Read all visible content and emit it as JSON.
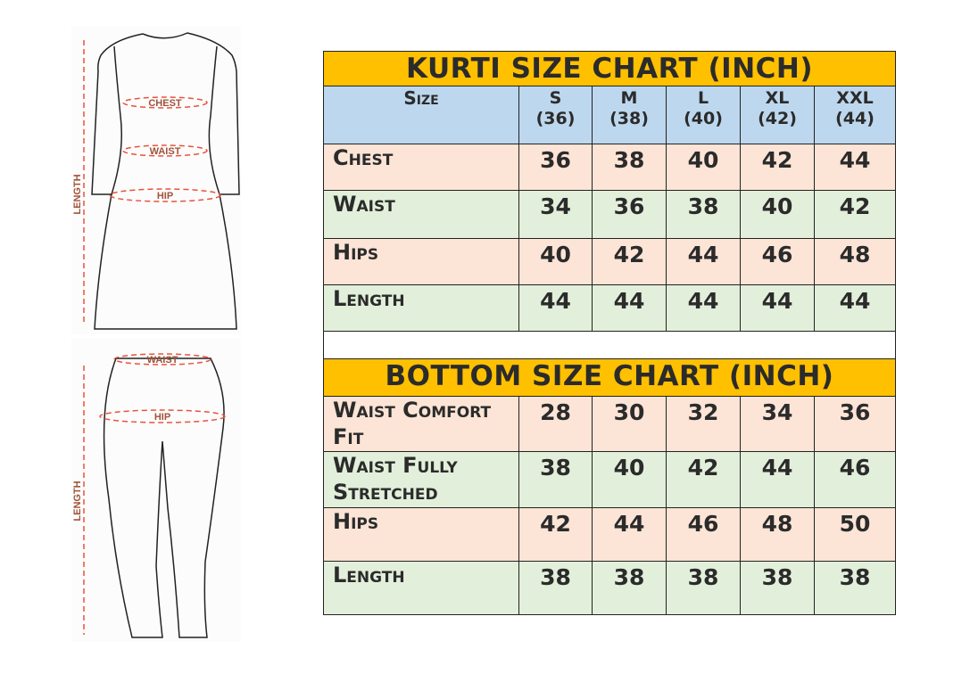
{
  "figure_labels": {
    "chest": "CHEST",
    "waist": "WAIST",
    "hip": "HIP",
    "length": "LENGTH"
  },
  "kurti": {
    "title": "KURTI SIZE CHART (INCH)",
    "size_label": "Size",
    "sizes": [
      {
        "name": "S",
        "num": "(36)"
      },
      {
        "name": "M",
        "num": "(38)"
      },
      {
        "name": "L",
        "num": "(40)"
      },
      {
        "name": "XL",
        "num": "(42)"
      },
      {
        "name": "XXL",
        "num": "(44)"
      }
    ],
    "rows": [
      {
        "label": "Chest",
        "values": [
          "36",
          "38",
          "40",
          "42",
          "44"
        ]
      },
      {
        "label": "Waist",
        "values": [
          "34",
          "36",
          "38",
          "40",
          "42"
        ]
      },
      {
        "label": "Hips",
        "values": [
          "40",
          "42",
          "44",
          "46",
          "48"
        ]
      },
      {
        "label": "Length",
        "values": [
          "44",
          "44",
          "44",
          "44",
          "44"
        ]
      }
    ]
  },
  "bottom": {
    "title": "BOTTOM SIZE CHART (INCH)",
    "rows": [
      {
        "label": "Waist Comfort Fit",
        "values": [
          "28",
          "30",
          "32",
          "34",
          "36"
        ]
      },
      {
        "label": "Waist Fully Stretched",
        "values": [
          "38",
          "40",
          "42",
          "44",
          "46"
        ]
      },
      {
        "label": "Hips",
        "values": [
          "42",
          "44",
          "46",
          "48",
          "50"
        ]
      },
      {
        "label": "Length",
        "values": [
          "38",
          "38",
          "38",
          "38",
          "38"
        ]
      }
    ]
  },
  "colors": {
    "title": "#FFC000",
    "header": "#BDD7EE",
    "peach": "#FCE4D6",
    "green": "#E2EFDA",
    "measure": "#E8533C"
  }
}
